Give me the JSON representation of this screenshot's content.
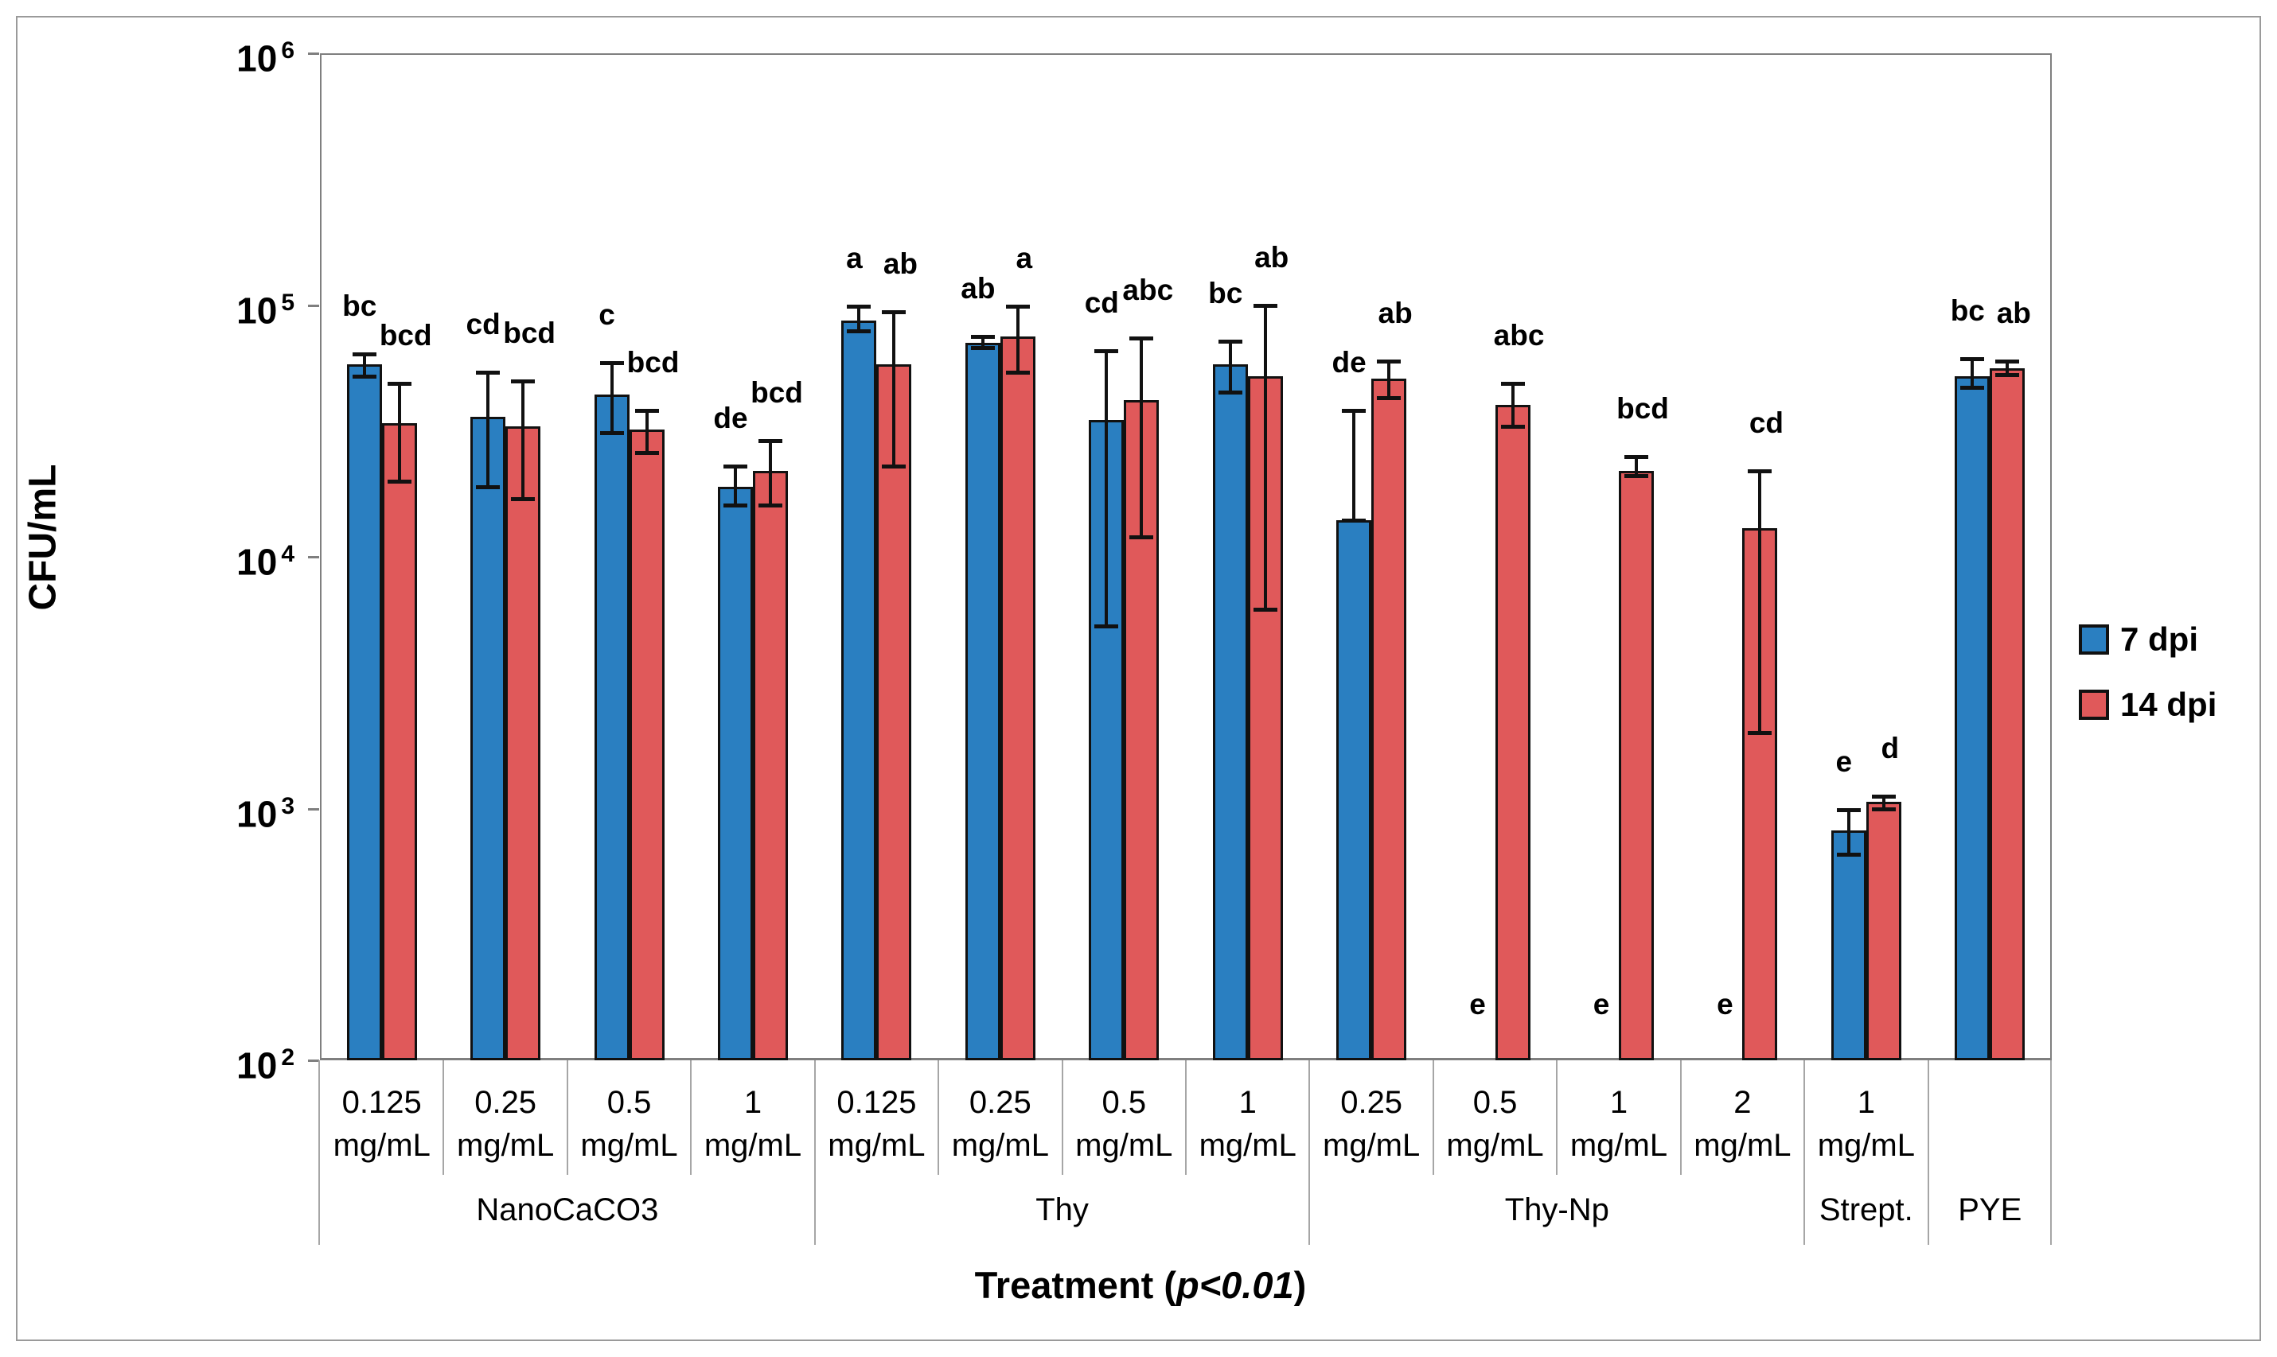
{
  "chart_data": {
    "type": "bar",
    "scale": "log",
    "title": "",
    "ylabel": "CFU/mL",
    "xlabel": {
      "prefix": "Treatment (",
      "italic": "p<0.01",
      "suffix": ")"
    },
    "ylim": [
      100,
      1000000
    ],
    "y_tick_exponents": [
      6,
      5,
      4,
      3,
      2
    ],
    "y_tick_base": "10",
    "grid": false,
    "legend_position": "right",
    "series": [
      {
        "name": "7 dpi",
        "color": "#2A7FC1"
      },
      {
        "name": "14 dpi",
        "color": "#E0595A"
      }
    ],
    "groups": [
      {
        "name": "NanoCaCO3",
        "categories": [
          {
            "conc": "0.125",
            "unit": "mg/mL",
            "blue": {
              "value": 58000,
              "err_lo": 52000,
              "err_hi": 64000,
              "letter": "bc"
            },
            "red": {
              "value": 34000,
              "err_lo": 20000,
              "err_hi": 49000,
              "letter": "bcd"
            }
          },
          {
            "conc": "0.25",
            "unit": "mg/mL",
            "blue": {
              "value": 36000,
              "err_lo": 19000,
              "err_hi": 54000,
              "letter": "cd"
            },
            "red": {
              "value": 33000,
              "err_lo": 17000,
              "err_hi": 50000,
              "letter": "bcd"
            }
          },
          {
            "conc": "0.5",
            "unit": "mg/mL",
            "blue": {
              "value": 44000,
              "err_lo": 31000,
              "err_hi": 59000,
              "letter": "c"
            },
            "red": {
              "value": 32000,
              "err_lo": 26000,
              "err_hi": 38000,
              "letter": "bcd"
            }
          },
          {
            "conc": "1",
            "unit": "mg/mL",
            "blue": {
              "value": 19000,
              "err_lo": 16000,
              "err_hi": 23000,
              "letter": "de"
            },
            "red": {
              "value": 22000,
              "err_lo": 16000,
              "err_hi": 29000,
              "letter": "bcd"
            }
          }
        ]
      },
      {
        "name": "Thy",
        "categories": [
          {
            "conc": "0.125",
            "unit": "mg/mL",
            "blue": {
              "value": 87000,
              "err_lo": 79000,
              "err_hi": 99000,
              "letter": "a"
            },
            "red": {
              "value": 58000,
              "err_lo": 23000,
              "err_hi": 94000,
              "letter": "ab"
            }
          },
          {
            "conc": "0.25",
            "unit": "mg/mL",
            "blue": {
              "value": 71000,
              "err_lo": 68000,
              "err_hi": 75000,
              "letter": "ab"
            },
            "red": {
              "value": 75000,
              "err_lo": 54000,
              "err_hi": 99000,
              "letter": "a"
            }
          },
          {
            "conc": "0.5",
            "unit": "mg/mL",
            "blue": {
              "value": 35000,
              "err_lo": 5300,
              "err_hi": 66000,
              "letter": "cd"
            },
            "red": {
              "value": 42000,
              "err_lo": 12000,
              "err_hi": 74000,
              "letter": "abc"
            }
          },
          {
            "conc": "1",
            "unit": "mg/mL",
            "blue": {
              "value": 58000,
              "err_lo": 45000,
              "err_hi": 72000,
              "letter": "bc"
            },
            "red": {
              "value": 52000,
              "err_lo": 6200,
              "err_hi": 100000,
              "letter": "ab"
            }
          }
        ]
      },
      {
        "name": "Thy-Np",
        "categories": [
          {
            "conc": "0.25",
            "unit": "mg/mL",
            "blue": {
              "value": 14000,
              "err_lo": 14000,
              "err_hi": 38000,
              "letter": "de"
            },
            "red": {
              "value": 51000,
              "err_lo": 43000,
              "err_hi": 60000,
              "letter": "ab"
            }
          },
          {
            "conc": "0.5",
            "unit": "mg/mL",
            "blue": {
              "value": null,
              "letter": "e"
            },
            "red": {
              "value": 40000,
              "err_lo": 33000,
              "err_hi": 49000,
              "letter": "abc"
            }
          },
          {
            "conc": "1",
            "unit": "mg/mL",
            "blue": {
              "value": null,
              "letter": "e"
            },
            "red": {
              "value": 22000,
              "err_lo": 21000,
              "err_hi": 25000,
              "letter": "bcd"
            }
          },
          {
            "conc": "2",
            "unit": "mg/mL",
            "blue": {
              "value": null,
              "letter": "e"
            },
            "red": {
              "value": 13000,
              "err_lo": 2000,
              "err_hi": 22000,
              "letter": "cd"
            }
          }
        ]
      },
      {
        "name": "Strept.",
        "categories": [
          {
            "conc": "1",
            "unit": "mg/mL",
            "blue": {
              "value": 820,
              "err_lo": 660,
              "err_hi": 990,
              "letter": "e"
            },
            "red": {
              "value": 1060,
              "err_lo": 1000,
              "err_hi": 1120,
              "letter": "d"
            }
          }
        ]
      },
      {
        "name": "PYE",
        "categories": [
          {
            "conc": "",
            "unit": "",
            "blue": {
              "value": 52000,
              "err_lo": 47000,
              "err_hi": 61000,
              "letter": "bc"
            },
            "red": {
              "value": 56000,
              "err_lo": 53000,
              "err_hi": 60000,
              "letter": "ab"
            }
          }
        ]
      }
    ]
  }
}
